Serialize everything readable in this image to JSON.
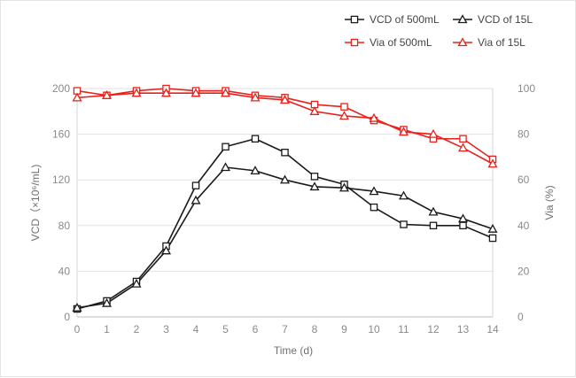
{
  "chart_data": {
    "type": "line",
    "title": "",
    "xlabel": "Time (d)",
    "ylabel": "VCD（×10⁶/mL)",
    "y2label": "Via (%)",
    "x": [
      0,
      1,
      2,
      3,
      4,
      5,
      6,
      7,
      8,
      9,
      10,
      11,
      12,
      13,
      14
    ],
    "x_ticks": [
      "0",
      "1",
      "2",
      "3",
      "4",
      "5",
      "6",
      "7",
      "8",
      "9",
      "10",
      "11",
      "12",
      "13",
      "14"
    ],
    "ylim": [
      0,
      200
    ],
    "y_ticks": [
      "0",
      "40",
      "80",
      "120",
      "160",
      "200"
    ],
    "y2lim": [
      0,
      100
    ],
    "y2_ticks": [
      "0",
      "20",
      "40",
      "60",
      "80",
      "100"
    ],
    "grid": "horizontal",
    "legend_position": "top-right",
    "series": [
      {
        "name": "VCD of 500mL",
        "axis": "left",
        "marker": "square",
        "color": "#1a1a1a",
        "values": [
          7,
          14,
          31,
          62,
          115,
          149,
          156,
          144,
          123,
          116,
          96,
          81,
          80,
          80,
          69
        ]
      },
      {
        "name": "VCD of 15L",
        "axis": "left",
        "marker": "triangle",
        "color": "#1a1a1a",
        "values": [
          8,
          12,
          29,
          58,
          102,
          131,
          128,
          120,
          114,
          113,
          110,
          106,
          92,
          86,
          77
        ]
      },
      {
        "name": "Via of 500mL",
        "axis": "right",
        "marker": "square",
        "color": "#e8211b",
        "values": [
          99,
          97,
          99,
          100,
          99,
          99,
          97,
          96,
          93,
          92,
          86,
          82,
          78,
          78,
          69
        ]
      },
      {
        "name": "Via of 15L",
        "axis": "right",
        "marker": "triangle",
        "color": "#e8211b",
        "values": [
          96,
          97,
          98,
          98,
          98,
          98,
          96,
          95,
          90,
          88,
          87,
          81,
          80,
          74,
          67
        ]
      }
    ]
  }
}
